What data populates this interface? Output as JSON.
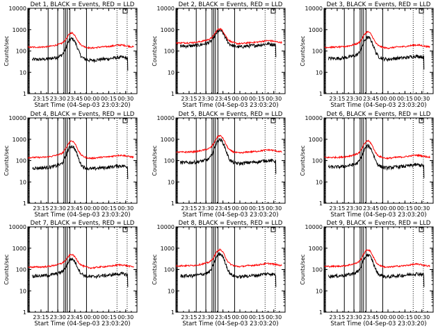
{
  "figure": {
    "x_axis_title": "Start Time (04-Sep-03 23:03:20)",
    "y_axis_title": "Counts/sec",
    "legend_box_symbol": "square-box"
  },
  "chart_data": [
    {
      "type": "line",
      "title": "Det 1, BLACK = Events, RED = LLD",
      "x_ticks": [
        "23:15",
        "23:30",
        "23:45",
        "00:00",
        "00:15",
        "00:30"
      ],
      "y_ticks": [
        "1",
        "10",
        "100",
        "1000",
        "10000"
      ],
      "ylim": [
        1,
        10000
      ],
      "yscale": "log",
      "series": [
        {
          "name": "Events",
          "color": "#000000",
          "base": 40,
          "peak": 350
        },
        {
          "name": "LLD",
          "color": "#ff0000",
          "base": 150,
          "peak": 600
        }
      ]
    },
    {
      "type": "line",
      "title": "Det 2, BLACK = Events, RED = LLD",
      "x_ticks": [
        "23:15",
        "23:30",
        "23:45",
        "00:00",
        "00:15",
        "00:30"
      ],
      "y_ticks": [
        "1",
        "10",
        "100",
        "1000",
        "10000"
      ],
      "ylim": [
        1,
        10000
      ],
      "yscale": "log",
      "series": [
        {
          "name": "Events",
          "color": "#000000",
          "base": 170,
          "peak": 800
        },
        {
          "name": "LLD",
          "color": "#ff0000",
          "base": 240,
          "peak": 950
        }
      ]
    },
    {
      "type": "line",
      "title": "Det 3, BLACK = Events, RED = LLD",
      "x_ticks": [
        "23:15",
        "23:30",
        "23:45",
        "00:00",
        "00:15",
        "00:30"
      ],
      "y_ticks": [
        "1",
        "10",
        "100",
        "1000",
        "10000"
      ],
      "ylim": [
        1,
        10000
      ],
      "yscale": "log",
      "series": [
        {
          "name": "Events",
          "color": "#000000",
          "base": 45,
          "peak": 400
        },
        {
          "name": "LLD",
          "color": "#ff0000",
          "base": 150,
          "peak": 700
        }
      ]
    },
    {
      "type": "line",
      "title": "Det 4, BLACK = Events, RED = LLD",
      "x_ticks": [
        "23:15",
        "23:30",
        "23:45",
        "00:00",
        "00:15",
        "00:30"
      ],
      "y_ticks": [
        "1",
        "10",
        "100",
        "1000",
        "10000"
      ],
      "ylim": [
        1,
        10000
      ],
      "yscale": "log",
      "series": [
        {
          "name": "Events",
          "color": "#000000",
          "base": 45,
          "peak": 450
        },
        {
          "name": "LLD",
          "color": "#ff0000",
          "base": 140,
          "peak": 750
        }
      ]
    },
    {
      "type": "line",
      "title": "Det 5, BLACK = Events, RED = LLD",
      "x_ticks": [
        "23:15",
        "23:30",
        "23:45",
        "00:00",
        "00:15",
        "00:30"
      ],
      "y_ticks": [
        "1",
        "10",
        "100",
        "1000",
        "10000"
      ],
      "ylim": [
        1,
        10000
      ],
      "yscale": "log",
      "series": [
        {
          "name": "Events",
          "color": "#000000",
          "base": 80,
          "peak": 900
        },
        {
          "name": "LLD",
          "color": "#ff0000",
          "base": 250,
          "peak": 1300
        }
      ]
    },
    {
      "type": "line",
      "title": "Det 6, BLACK = Events, RED = LLD",
      "x_ticks": [
        "23:15",
        "23:30",
        "23:45",
        "00:00",
        "00:15",
        "00:30"
      ],
      "y_ticks": [
        "1",
        "10",
        "100",
        "1000",
        "10000"
      ],
      "ylim": [
        1,
        10000
      ],
      "yscale": "log",
      "series": [
        {
          "name": "Events",
          "color": "#000000",
          "base": 50,
          "peak": 450
        },
        {
          "name": "LLD",
          "color": "#ff0000",
          "base": 140,
          "peak": 750
        }
      ]
    },
    {
      "type": "line",
      "title": "Det 7, BLACK = Events, RED = LLD",
      "x_ticks": [
        "23:15",
        "23:30",
        "23:45",
        "00:00",
        "00:15",
        "00:30"
      ],
      "y_ticks": [
        "1",
        "10",
        "100",
        "1000",
        "10000"
      ],
      "ylim": [
        1,
        10000
      ],
      "yscale": "log",
      "series": [
        {
          "name": "Events",
          "color": "#000000",
          "base": 50,
          "peak": 280
        },
        {
          "name": "LLD",
          "color": "#ff0000",
          "base": 130,
          "peak": 420
        }
      ]
    },
    {
      "type": "line",
      "title": "Det 8, BLACK = Events, RED = LLD",
      "x_ticks": [
        "23:15",
        "23:30",
        "23:45",
        "00:00",
        "00:15",
        "00:30"
      ],
      "y_ticks": [
        "1",
        "10",
        "100",
        "1000",
        "10000"
      ],
      "ylim": [
        1,
        10000
      ],
      "yscale": "log",
      "series": [
        {
          "name": "Events",
          "color": "#000000",
          "base": 50,
          "peak": 500
        },
        {
          "name": "LLD",
          "color": "#ff0000",
          "base": 150,
          "peak": 750
        }
      ]
    },
    {
      "type": "line",
      "title": "Det 9, BLACK = Events, RED = LLD",
      "x_ticks": [
        "23:15",
        "23:30",
        "23:45",
        "00:00",
        "00:15",
        "00:30"
      ],
      "y_ticks": [
        "1",
        "10",
        "100",
        "1000",
        "10000"
      ],
      "ylim": [
        1,
        10000
      ],
      "yscale": "log",
      "series": [
        {
          "name": "Events",
          "color": "#000000",
          "base": 50,
          "peak": 450
        },
        {
          "name": "LLD",
          "color": "#ff0000",
          "base": 140,
          "peak": 750
        }
      ]
    }
  ]
}
